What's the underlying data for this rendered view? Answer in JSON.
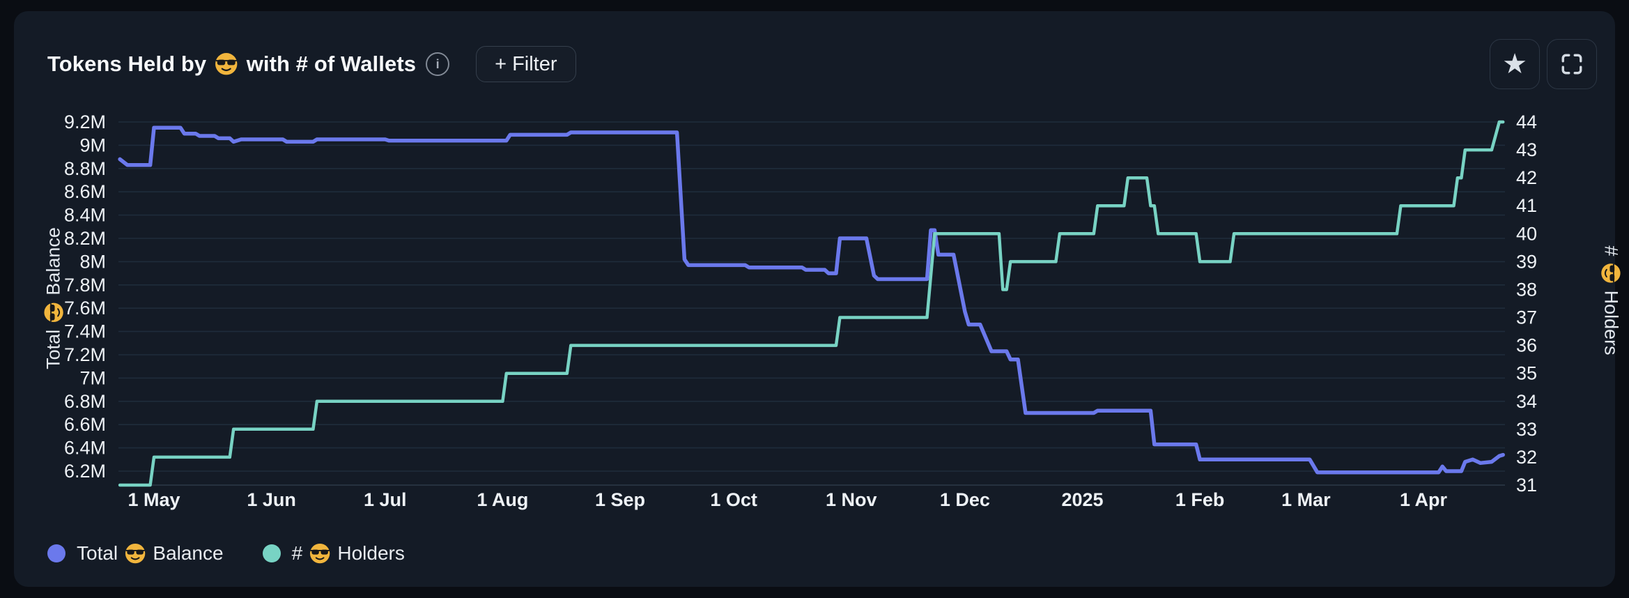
{
  "header": {
    "title_prefix": "Tokens Held by",
    "title_suffix": "with # of Wallets",
    "emoji": "😎",
    "filter_button_label": "+ Filter",
    "info_icon": "info-circle",
    "actions": [
      "favorite-star",
      "fullscreen-expand"
    ]
  },
  "chart_data": {
    "type": "line",
    "title": "Tokens Held by 😎 with # of Wallets",
    "grid": "horizontal-only",
    "legend_position": "bottom-left",
    "x_axis": {
      "ticks": [
        {
          "date": "2024-05-01",
          "label": "1 May"
        },
        {
          "date": "2024-06-01",
          "label": "1 Jun"
        },
        {
          "date": "2024-07-01",
          "label": "1 Jul"
        },
        {
          "date": "2024-08-01",
          "label": "1 Aug"
        },
        {
          "date": "2024-09-01",
          "label": "1 Sep"
        },
        {
          "date": "2024-10-01",
          "label": "1 Oct"
        },
        {
          "date": "2024-11-01",
          "label": "1 Nov"
        },
        {
          "date": "2024-12-01",
          "label": "1 Dec"
        },
        {
          "date": "2025-01-01",
          "label": "2025"
        },
        {
          "date": "2025-02-01",
          "label": "1 Feb"
        },
        {
          "date": "2025-03-01",
          "label": "1 Mar"
        },
        {
          "date": "2025-04-01",
          "label": "1 Apr"
        }
      ],
      "range": [
        "2024-04-22",
        "2025-04-22"
      ]
    },
    "left_axis": {
      "title_prefix": "Total",
      "title_suffix": "Balance",
      "emoji": "😎",
      "min": 6.2,
      "max": 9.2,
      "step": 0.2,
      "unit": "M",
      "tick_labels": [
        "9.2M",
        "9M",
        "8.8M",
        "8.6M",
        "8.4M",
        "8.2M",
        "8M",
        "7.8M",
        "7.6M",
        "7.4M",
        "7.2M",
        "7M",
        "6.8M",
        "6.6M",
        "6.4M",
        "6.2M"
      ]
    },
    "right_axis": {
      "title_prefix": "#",
      "title_suffix": "Holders",
      "emoji": "😎",
      "min": 31,
      "max": 44,
      "step": 1,
      "tick_labels": [
        "44",
        "43",
        "42",
        "41",
        "40",
        "39",
        "38",
        "37",
        "36",
        "35",
        "34",
        "33",
        "32",
        "31"
      ]
    },
    "series": [
      {
        "name": "Total 😎 Balance",
        "axis": "left",
        "color": "#6b79ec",
        "stroke_width": 5.5,
        "unit": "M tokens",
        "points": [
          [
            "2024-04-22",
            8.88
          ],
          [
            "2024-04-24",
            8.83
          ],
          [
            "2024-04-30",
            8.83
          ],
          [
            "2024-05-01",
            9.15
          ],
          [
            "2024-05-08",
            9.15
          ],
          [
            "2024-05-09",
            9.1
          ],
          [
            "2024-05-12",
            9.1
          ],
          [
            "2024-05-13",
            9.08
          ],
          [
            "2024-05-17",
            9.08
          ],
          [
            "2024-05-18",
            9.06
          ],
          [
            "2024-05-21",
            9.06
          ],
          [
            "2024-05-22",
            9.03
          ],
          [
            "2024-05-24",
            9.05
          ],
          [
            "2024-06-04",
            9.05
          ],
          [
            "2024-06-05",
            9.03
          ],
          [
            "2024-06-12",
            9.03
          ],
          [
            "2024-06-13",
            9.05
          ],
          [
            "2024-07-01",
            9.05
          ],
          [
            "2024-07-02",
            9.04
          ],
          [
            "2024-08-02",
            9.04
          ],
          [
            "2024-08-03",
            9.09
          ],
          [
            "2024-08-18",
            9.09
          ],
          [
            "2024-08-19",
            9.11
          ],
          [
            "2024-09-16",
            9.11
          ],
          [
            "2024-09-18",
            8.02
          ],
          [
            "2024-09-19",
            7.97
          ],
          [
            "2024-10-04",
            7.97
          ],
          [
            "2024-10-05",
            7.95
          ],
          [
            "2024-10-19",
            7.95
          ],
          [
            "2024-10-20",
            7.93
          ],
          [
            "2024-10-25",
            7.93
          ],
          [
            "2024-10-26",
            7.9
          ],
          [
            "2024-10-28",
            7.9
          ],
          [
            "2024-10-29",
            8.2
          ],
          [
            "2024-11-05",
            8.2
          ],
          [
            "2024-11-07",
            7.88
          ],
          [
            "2024-11-08",
            7.85
          ],
          [
            "2024-11-21",
            7.85
          ],
          [
            "2024-11-22",
            8.27
          ],
          [
            "2024-11-23",
            8.27
          ],
          [
            "2024-11-24",
            8.06
          ],
          [
            "2024-11-28",
            8.06
          ],
          [
            "2024-12-01",
            7.57
          ],
          [
            "2024-12-02",
            7.46
          ],
          [
            "2024-12-05",
            7.46
          ],
          [
            "2024-12-08",
            7.23
          ],
          [
            "2024-12-12",
            7.23
          ],
          [
            "2024-12-13",
            7.16
          ],
          [
            "2024-12-15",
            7.16
          ],
          [
            "2024-12-17",
            6.7
          ],
          [
            "2025-01-04",
            6.7
          ],
          [
            "2025-01-05",
            6.72
          ],
          [
            "2025-01-19",
            6.72
          ],
          [
            "2025-01-20",
            6.43
          ],
          [
            "2025-01-31",
            6.43
          ],
          [
            "2025-02-01",
            6.3
          ],
          [
            "2025-03-02",
            6.3
          ],
          [
            "2025-03-04",
            6.19
          ],
          [
            "2025-04-05",
            6.19
          ],
          [
            "2025-04-06",
            6.24
          ],
          [
            "2025-04-07",
            6.2
          ],
          [
            "2025-04-11",
            6.2
          ],
          [
            "2025-04-12",
            6.28
          ],
          [
            "2025-04-14",
            6.3
          ],
          [
            "2025-04-16",
            6.27
          ],
          [
            "2025-04-19",
            6.28
          ],
          [
            "2025-04-21",
            6.33
          ],
          [
            "2025-04-22",
            6.34
          ]
        ]
      },
      {
        "name": "# 😎 Holders",
        "axis": "right",
        "color": "#78d3c4",
        "stroke_width": 4.5,
        "unit": "wallets",
        "points": [
          [
            "2024-04-22",
            31
          ],
          [
            "2024-04-30",
            31
          ],
          [
            "2024-05-01",
            32
          ],
          [
            "2024-05-21",
            32
          ],
          [
            "2024-05-22",
            33
          ],
          [
            "2024-06-12",
            33
          ],
          [
            "2024-06-13",
            34
          ],
          [
            "2024-08-01",
            34
          ],
          [
            "2024-08-02",
            35
          ],
          [
            "2024-08-18",
            35
          ],
          [
            "2024-08-19",
            36
          ],
          [
            "2024-10-28",
            36
          ],
          [
            "2024-10-29",
            37
          ],
          [
            "2024-11-21",
            37
          ],
          [
            "2024-11-23",
            40
          ],
          [
            "2024-12-10",
            40
          ],
          [
            "2024-12-11",
            38
          ],
          [
            "2024-12-12",
            38
          ],
          [
            "2024-12-13",
            39
          ],
          [
            "2024-12-25",
            39
          ],
          [
            "2024-12-26",
            40
          ],
          [
            "2025-01-04",
            40
          ],
          [
            "2025-01-05",
            41
          ],
          [
            "2025-01-12",
            41
          ],
          [
            "2025-01-13",
            42
          ],
          [
            "2025-01-18",
            42
          ],
          [
            "2025-01-19",
            41
          ],
          [
            "2025-01-20",
            41
          ],
          [
            "2025-01-21",
            40
          ],
          [
            "2025-01-31",
            40
          ],
          [
            "2025-02-01",
            39
          ],
          [
            "2025-02-09",
            39
          ],
          [
            "2025-02-10",
            40
          ],
          [
            "2025-03-25",
            40
          ],
          [
            "2025-03-26",
            41
          ],
          [
            "2025-04-09",
            41
          ],
          [
            "2025-04-10",
            42
          ],
          [
            "2025-04-11",
            42
          ],
          [
            "2025-04-12",
            43
          ],
          [
            "2025-04-19",
            43
          ],
          [
            "2025-04-21",
            44
          ],
          [
            "2025-04-22",
            44
          ]
        ]
      }
    ],
    "legend": [
      {
        "label_prefix": "Total",
        "label_suffix": "Balance",
        "emoji": "😎",
        "color": "#6b79ec"
      },
      {
        "label_prefix": "#",
        "label_suffix": "Holders",
        "emoji": "😎",
        "color": "#78d3c4"
      }
    ]
  },
  "colors": {
    "balance_line": "#6b79ec",
    "holders_line": "#78d3c4",
    "card_background": "#141b26",
    "page_background": "#0a0d13",
    "gridline": "#1f2c3b",
    "emoji_yellow": "#f1b53d"
  }
}
